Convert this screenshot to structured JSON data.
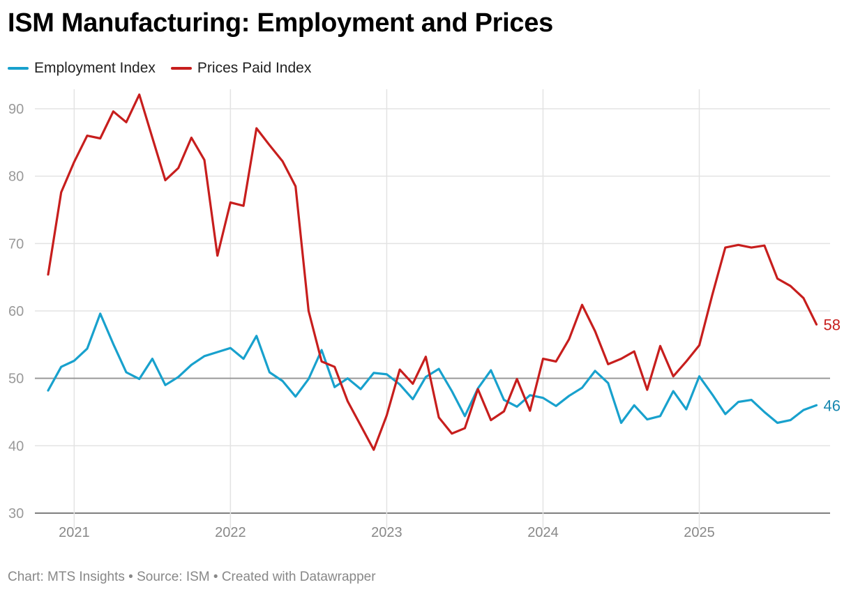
{
  "title": "ISM Manufacturing: Employment and Prices",
  "footer": "Chart: MTS Insights • Source: ISM • Created with Datawrapper",
  "chart_data": {
    "type": "line",
    "title": "ISM Manufacturing: Employment and Prices",
    "x_start": "2020-11",
    "x_end": "2025-10",
    "x_frequency": "monthly",
    "x_ticks": [
      "2021",
      "2022",
      "2023",
      "2024",
      "2025"
    ],
    "y_ticks": [
      30,
      40,
      50,
      60,
      70,
      80,
      90
    ],
    "ylim": [
      30,
      92
    ],
    "reference_line": 50,
    "grid": true,
    "legend": "top-left",
    "series": [
      {
        "name": "Employment Index",
        "color": "#18a1cd",
        "end_label": "46",
        "values": [
          48.2,
          51.7,
          52.6,
          54.4,
          59.6,
          55.1,
          50.9,
          49.9,
          52.9,
          49.0,
          50.2,
          52.0,
          53.3,
          53.9,
          54.5,
          52.9,
          56.3,
          50.9,
          49.6,
          47.3,
          49.9,
          54.2,
          48.7,
          50.0,
          48.4,
          50.8,
          50.6,
          49.1,
          46.9,
          50.2,
          51.4,
          48.1,
          44.4,
          48.5,
          51.2,
          46.8,
          45.8,
          47.5,
          47.1,
          45.9,
          47.4,
          48.6,
          51.1,
          49.3,
          43.4,
          46.0,
          43.9,
          44.4,
          48.1,
          45.4,
          50.3,
          47.6,
          44.7,
          46.5,
          46.8,
          45.0,
          43.4,
          43.8,
          45.3,
          46.0
        ]
      },
      {
        "name": "Prices Paid Index",
        "color": "#c71e1d",
        "end_label": "58",
        "values": [
          65.4,
          77.6,
          82.1,
          86.0,
          85.6,
          89.6,
          88.0,
          92.1,
          85.7,
          79.4,
          81.2,
          85.7,
          82.4,
          68.2,
          76.1,
          75.6,
          87.1,
          84.6,
          82.2,
          78.5,
          60.0,
          52.5,
          51.7,
          46.6,
          43.0,
          39.4,
          44.5,
          51.3,
          49.2,
          53.2,
          44.2,
          41.8,
          42.6,
          48.4,
          43.8,
          45.1,
          49.9,
          45.2,
          52.9,
          52.5,
          55.8,
          60.9,
          57.0,
          52.1,
          52.9,
          54.0,
          48.3,
          54.8,
          50.3,
          52.5,
          54.9,
          62.4,
          69.4,
          69.8,
          69.4,
          69.7,
          64.8,
          63.7,
          61.9,
          58.0
        ]
      }
    ]
  }
}
